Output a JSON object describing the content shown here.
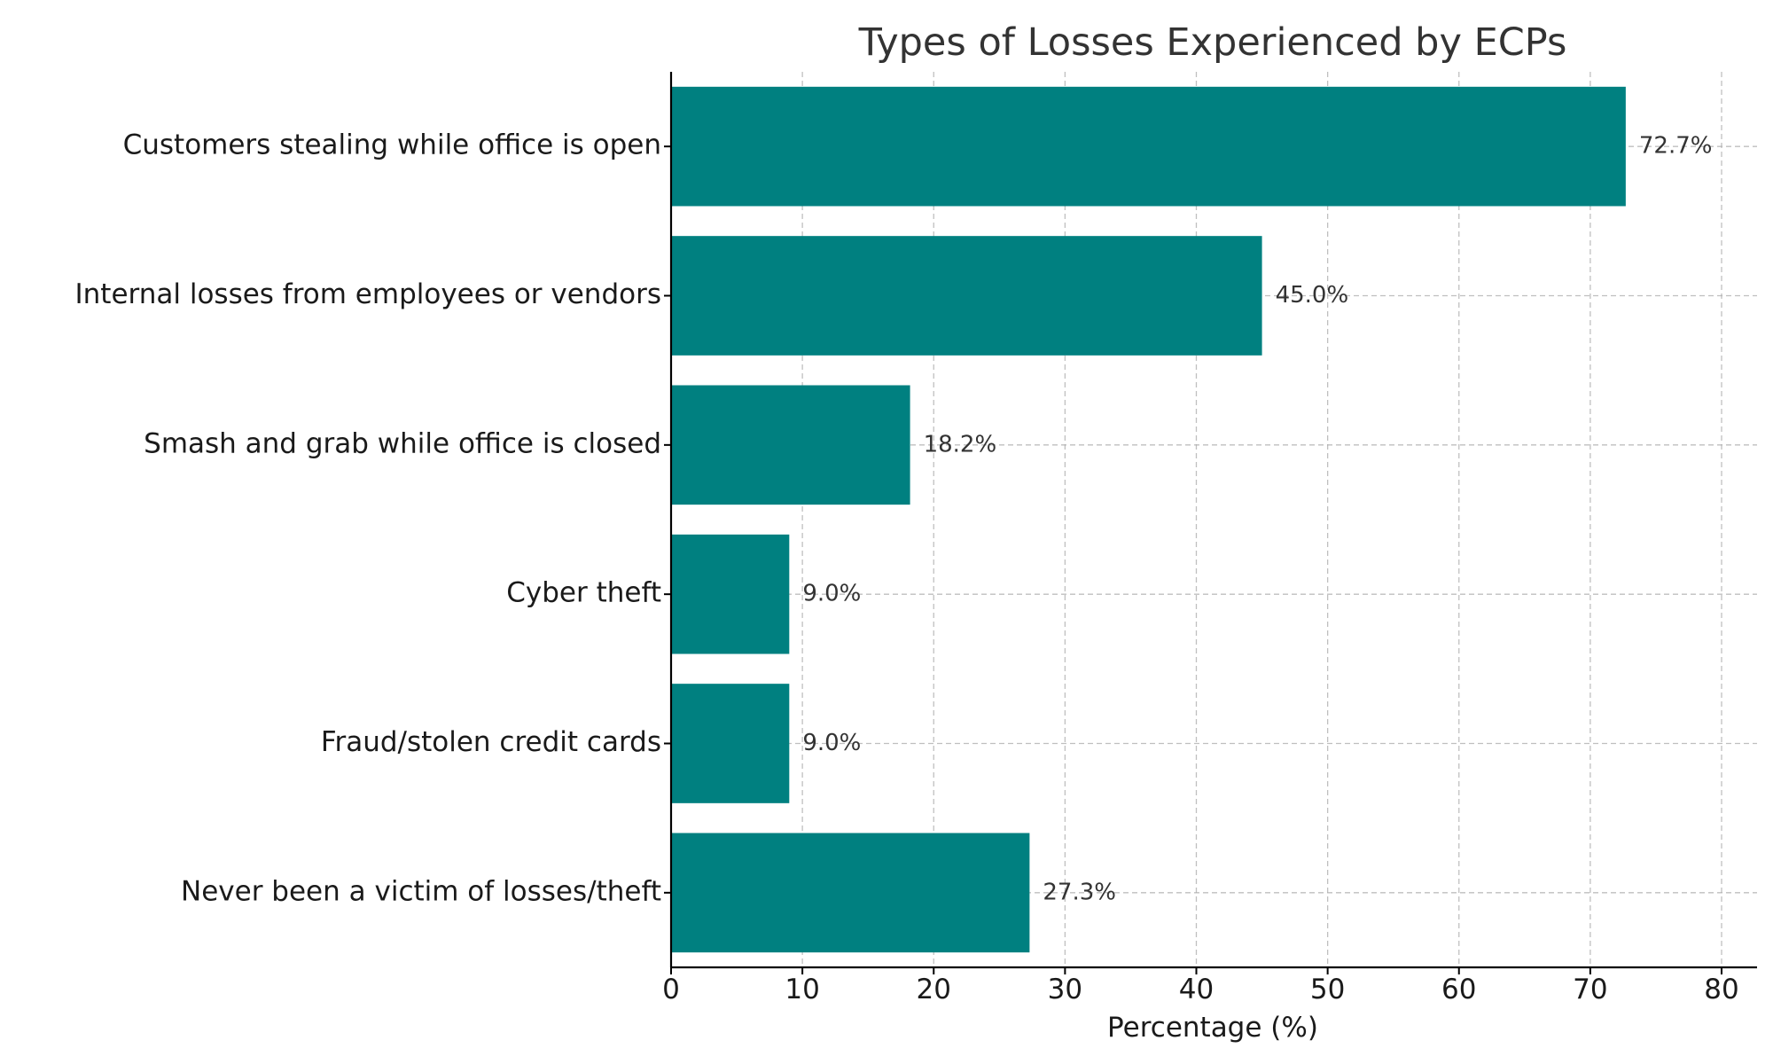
{
  "chart_data": {
    "type": "bar",
    "orientation": "horizontal",
    "title": "Types of Losses Experienced by ECPs",
    "xlabel": "Percentage (%)",
    "ylabel": "",
    "categories": [
      "Customers stealing while office is open",
      "Internal losses from employees or vendors",
      "Smash and grab while office is closed",
      "Cyber theft",
      "Fraud/stolen credit cards",
      "Never been a victim of losses/theft"
    ],
    "values": [
      72.7,
      45.0,
      18.2,
      9.0,
      9.0,
      27.3
    ],
    "value_labels": [
      "72.7%",
      "45.0%",
      "18.2%",
      "9.0%",
      "9.0%",
      "27.3%"
    ],
    "xlim": [
      0,
      82.7
    ],
    "xticks": [
      0,
      10,
      20,
      30,
      40,
      50,
      60,
      70,
      80
    ],
    "xtick_labels": [
      "0",
      "10",
      "20",
      "30",
      "40",
      "50",
      "60",
      "70",
      "80"
    ],
    "grid": true,
    "legend": "none",
    "colors": {
      "bar": "#008080"
    }
  }
}
